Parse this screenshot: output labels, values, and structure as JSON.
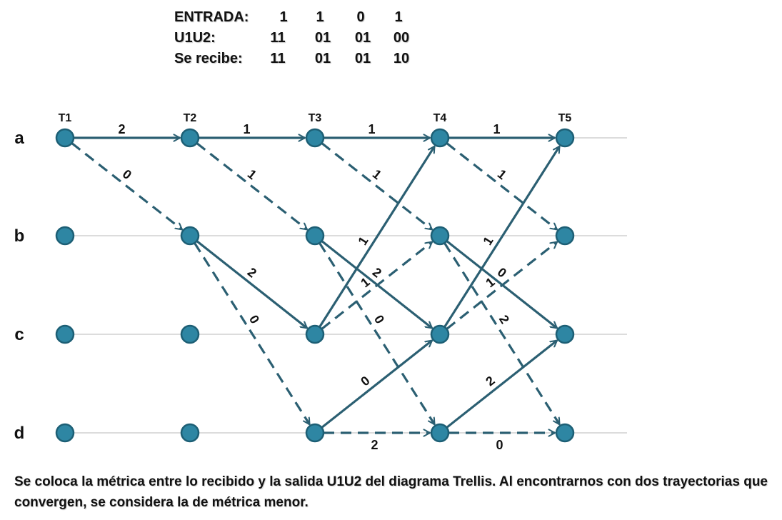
{
  "header": {
    "rows": [
      {
        "label": "ENTRADA:",
        "values": [
          "1",
          "1",
          "0",
          "1"
        ]
      },
      {
        "label": "U1U2:",
        "values": [
          "11",
          "01",
          "01",
          "00"
        ]
      },
      {
        "label": "Se recibe:",
        "values": [
          "11",
          "01",
          "01",
          "10"
        ]
      }
    ]
  },
  "trellis": {
    "times": [
      "T1",
      "T2",
      "T3",
      "T4",
      "T5"
    ],
    "states": [
      "a",
      "b",
      "c",
      "d"
    ],
    "edges": [
      {
        "from": [
          "T1",
          "a"
        ],
        "to": [
          "T2",
          "a"
        ],
        "style": "solid",
        "metric": "2"
      },
      {
        "from": [
          "T1",
          "a"
        ],
        "to": [
          "T2",
          "b"
        ],
        "style": "dashed",
        "metric": "0"
      },
      {
        "from": [
          "T2",
          "a"
        ],
        "to": [
          "T3",
          "a"
        ],
        "style": "solid",
        "metric": "1"
      },
      {
        "from": [
          "T2",
          "a"
        ],
        "to": [
          "T3",
          "b"
        ],
        "style": "dashed",
        "metric": "1"
      },
      {
        "from": [
          "T2",
          "b"
        ],
        "to": [
          "T3",
          "c"
        ],
        "style": "solid",
        "metric": "2"
      },
      {
        "from": [
          "T2",
          "b"
        ],
        "to": [
          "T3",
          "d"
        ],
        "style": "dashed",
        "metric": "0"
      },
      {
        "from": [
          "T3",
          "a"
        ],
        "to": [
          "T4",
          "a"
        ],
        "style": "solid",
        "metric": "1"
      },
      {
        "from": [
          "T3",
          "a"
        ],
        "to": [
          "T4",
          "b"
        ],
        "style": "dashed",
        "metric": "1"
      },
      {
        "from": [
          "T3",
          "c"
        ],
        "to": [
          "T4",
          "a"
        ],
        "style": "solid",
        "metric": "1"
      },
      {
        "from": [
          "T3",
          "c"
        ],
        "to": [
          "T4",
          "b"
        ],
        "style": "dashed",
        "metric": "1"
      },
      {
        "from": [
          "T3",
          "b"
        ],
        "to": [
          "T4",
          "c"
        ],
        "style": "solid",
        "metric": "2"
      },
      {
        "from": [
          "T3",
          "b"
        ],
        "to": [
          "T4",
          "d"
        ],
        "style": "dashed",
        "metric": "0"
      },
      {
        "from": [
          "T3",
          "d"
        ],
        "to": [
          "T4",
          "c"
        ],
        "style": "solid",
        "metric": "0"
      },
      {
        "from": [
          "T3",
          "d"
        ],
        "to": [
          "T4",
          "d"
        ],
        "style": "dashed",
        "metric": "2"
      },
      {
        "from": [
          "T4",
          "a"
        ],
        "to": [
          "T5",
          "a"
        ],
        "style": "solid",
        "metric": "1"
      },
      {
        "from": [
          "T4",
          "a"
        ],
        "to": [
          "T5",
          "b"
        ],
        "style": "dashed",
        "metric": "1"
      },
      {
        "from": [
          "T4",
          "c"
        ],
        "to": [
          "T5",
          "a"
        ],
        "style": "solid",
        "metric": "1"
      },
      {
        "from": [
          "T4",
          "c"
        ],
        "to": [
          "T5",
          "b"
        ],
        "style": "dashed",
        "metric": "1"
      },
      {
        "from": [
          "T4",
          "b"
        ],
        "to": [
          "T5",
          "c"
        ],
        "style": "solid",
        "metric": "0"
      },
      {
        "from": [
          "T4",
          "b"
        ],
        "to": [
          "T5",
          "d"
        ],
        "style": "dashed",
        "metric": "2"
      },
      {
        "from": [
          "T4",
          "d"
        ],
        "to": [
          "T5",
          "c"
        ],
        "style": "solid",
        "metric": "2"
      },
      {
        "from": [
          "T4",
          "d"
        ],
        "to": [
          "T5",
          "d"
        ],
        "style": "dashed",
        "metric": "0"
      }
    ]
  },
  "caption": "Se coloca la métrica entre lo recibido y la salida U1U2 del diagrama Trellis. Al encontrarnos con dos trayectorias que convergen, se considera la de métrica menor.",
  "colors": {
    "node_fill": "#2e86a3",
    "node_stroke": "#1d5f75",
    "edge": "#2b5f72",
    "gridline": "#c8c8c8"
  }
}
